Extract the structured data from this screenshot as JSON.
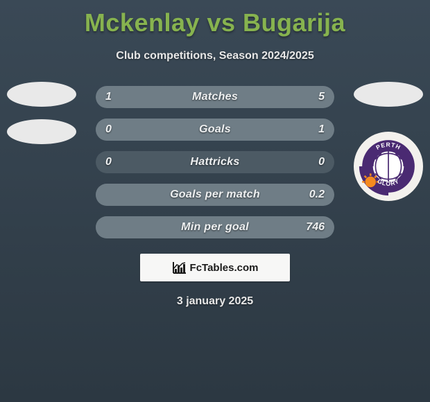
{
  "title": "Mckenlay vs Bugarija",
  "subtitle": "Club competitions, Season 2024/2025",
  "date": "3 january 2025",
  "attribution": "FcTables.com",
  "colors": {
    "title": "#87b34f",
    "text": "#e8e8e8",
    "bar_left_fill": "#6f7d86",
    "bar_right_fill": "#6f7d86",
    "bar_base": "#4c5a64"
  },
  "bars": [
    {
      "label": "Matches",
      "left_val": "1",
      "right_val": "5",
      "left_pct": 16.7,
      "right_pct": 83.3
    },
    {
      "label": "Goals",
      "left_val": "0",
      "right_val": "1",
      "left_pct": 0,
      "right_pct": 100
    },
    {
      "label": "Hattricks",
      "left_val": "0",
      "right_val": "0",
      "left_pct": 0,
      "right_pct": 0
    },
    {
      "label": "Goals per match",
      "left_val": "",
      "right_val": "0.2",
      "left_pct": 0,
      "right_pct": 100
    },
    {
      "label": "Min per goal",
      "left_val": "",
      "right_val": "746",
      "left_pct": 0,
      "right_pct": 100
    }
  ],
  "right_club": {
    "name": "Perth Glory",
    "badge_colors": {
      "ring": "#4a2a72",
      "ball_white": "#ffffff",
      "sun": "#f58a1f",
      "text": "#ffffff"
    }
  }
}
